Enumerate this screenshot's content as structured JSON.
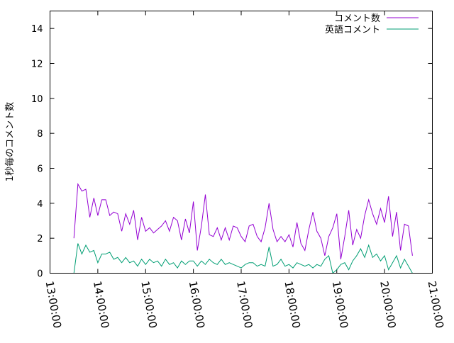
{
  "chart_data": {
    "type": "line",
    "title": "",
    "xlabel": "",
    "ylabel": "1秒毎のコメント数",
    "xlim": [
      "13:00:00",
      "21:00:00"
    ],
    "ylim": [
      0,
      15
    ],
    "x_ticks": [
      "13:00:00",
      "14:00:00",
      "15:00:00",
      "16:00:00",
      "17:00:00",
      "18:00:00",
      "19:00:00",
      "20:00:00",
      "21:00:00"
    ],
    "y_ticks": [
      "0",
      "2",
      "4",
      "6",
      "8",
      "10",
      "12",
      "14"
    ],
    "grid": false,
    "legend_position": "top-right",
    "x_start": "13:30",
    "x_step_minutes": 5,
    "series": [
      {
        "name": "コメント数",
        "color": "#9400d3",
        "values": [
          2.0,
          5.1,
          4.7,
          4.8,
          3.2,
          4.3,
          3.3,
          4.2,
          4.2,
          3.3,
          3.5,
          3.4,
          2.4,
          3.4,
          2.8,
          3.6,
          1.9,
          3.2,
          2.4,
          2.6,
          2.3,
          2.5,
          2.7,
          3.0,
          2.4,
          3.2,
          3.0,
          1.9,
          3.1,
          2.3,
          4.1,
          1.3,
          2.7,
          4.5,
          2.2,
          2.1,
          2.6,
          1.9,
          2.6,
          1.9,
          2.7,
          2.6,
          2.1,
          1.8,
          2.7,
          2.8,
          2.1,
          1.8,
          2.6,
          4.0,
          2.5,
          1.8,
          2.1,
          1.8,
          2.2,
          1.5,
          2.9,
          1.7,
          1.3,
          2.5,
          3.5,
          2.4,
          2.0,
          1.0,
          2.1,
          2.6,
          3.4,
          0.8,
          2.1,
          3.6,
          1.6,
          2.5,
          2.0,
          3.3,
          4.2,
          3.4,
          2.8,
          3.7,
          2.9,
          4.4,
          2.1,
          3.5,
          1.3,
          2.8,
          2.7,
          1.0
        ]
      },
      {
        "name": "英語コメント",
        "color": "#009e73",
        "values": [
          0,
          1.7,
          1.1,
          1.6,
          1.2,
          1.3,
          0.6,
          1.1,
          1.1,
          1.2,
          0.8,
          0.9,
          0.6,
          0.9,
          0.6,
          0.7,
          0.4,
          0.8,
          0.5,
          0.8,
          0.6,
          0.7,
          0.4,
          0.8,
          0.5,
          0.6,
          0.3,
          0.7,
          0.5,
          0.7,
          0.7,
          0.4,
          0.7,
          0.5,
          0.8,
          0.6,
          0.5,
          0.8,
          0.5,
          0.6,
          0.5,
          0.4,
          0.3,
          0.5,
          0.6,
          0.6,
          0.4,
          0.5,
          0.4,
          1.5,
          0.4,
          0.5,
          0.8,
          0.4,
          0.5,
          0.3,
          0.6,
          0.5,
          0.4,
          0.5,
          0.3,
          0.5,
          0.4,
          0.8,
          1.0,
          0.0,
          0.2,
          0.5,
          0.6,
          0.2,
          0.7,
          1.0,
          1.4,
          0.9,
          1.6,
          0.9,
          1.1,
          0.7,
          1.0,
          0.2,
          0.6,
          1.0,
          0.3,
          0.8,
          0.4,
          0.0
        ]
      }
    ]
  }
}
